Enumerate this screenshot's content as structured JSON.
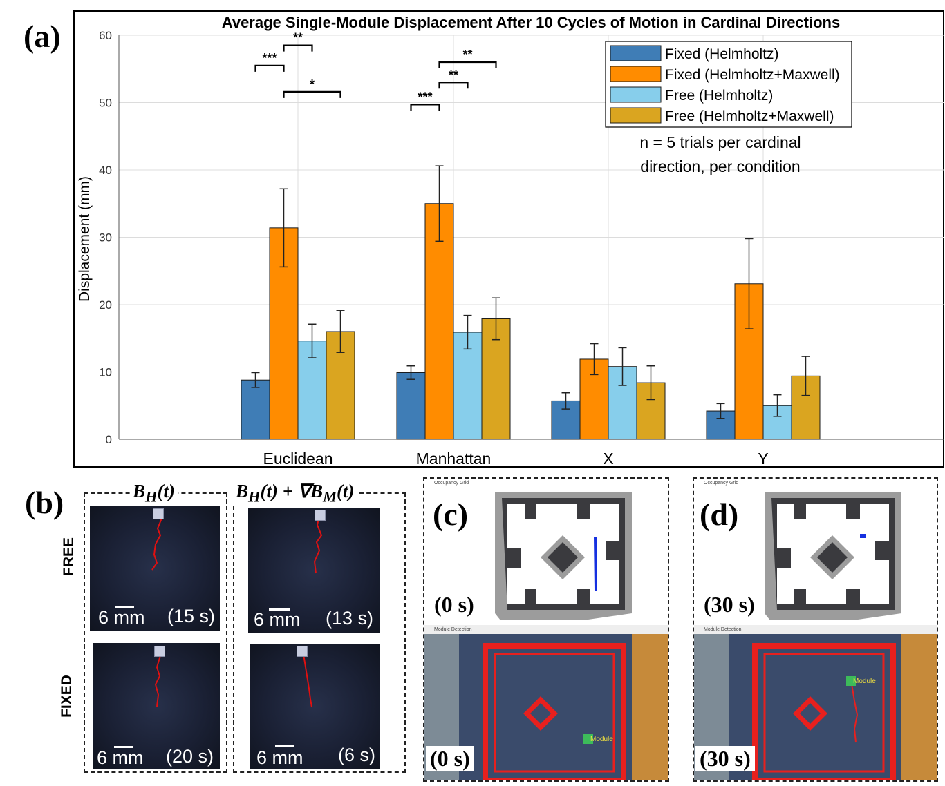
{
  "panels": {
    "a_label": "(a)",
    "b_label": "(b)",
    "c_label": "(c)",
    "d_label": "(d)"
  },
  "chart_data": {
    "type": "bar",
    "title": "Average Single-Module Displacement After 10 Cycles of Motion in Cardinal Directions",
    "xlabel": "",
    "ylabel": "Displacement (mm)",
    "ylim": [
      0,
      60
    ],
    "yticks": [
      0,
      10,
      20,
      30,
      40,
      50,
      60
    ],
    "grid": true,
    "legend_position": "top-right",
    "categories": [
      "Euclidean",
      "Manhattan",
      "X",
      "Y"
    ],
    "series": [
      {
        "name": "Fixed (Helmholtz)",
        "color": "#3f7db6",
        "values": [
          8.8,
          9.9,
          5.7,
          4.2
        ],
        "errors": [
          1.1,
          1.0,
          1.2,
          1.1
        ]
      },
      {
        "name": "Fixed (Helmholtz+Maxwell)",
        "color": "#ff8c00",
        "values": [
          31.4,
          35.0,
          11.9,
          23.1
        ],
        "errors": [
          5.8,
          5.6,
          2.3,
          6.7
        ]
      },
      {
        "name": "Free (Helmholtz)",
        "color": "#87ceeb",
        "values": [
          14.6,
          15.9,
          10.8,
          5.0
        ],
        "errors": [
          2.5,
          2.5,
          2.8,
          1.6
        ]
      },
      {
        "name": "Free (Helmholtz+Maxwell)",
        "color": "#daa520",
        "values": [
          16.0,
          17.9,
          8.4,
          9.4
        ],
        "errors": [
          3.1,
          3.1,
          2.5,
          2.9
        ]
      }
    ],
    "significance": [
      {
        "category": "Euclidean",
        "from": 0,
        "to": 1,
        "level": 55.5,
        "stars": "***"
      },
      {
        "category": "Euclidean",
        "from": 1,
        "to": 2,
        "level": 58.5,
        "stars": "**"
      },
      {
        "category": "Euclidean",
        "from": 1,
        "to": 3,
        "level": 51.6,
        "stars": "*"
      },
      {
        "category": "Manhattan",
        "from": 0,
        "to": 1,
        "level": 49.7,
        "stars": "***"
      },
      {
        "category": "Manhattan",
        "from": 1,
        "to": 2,
        "level": 53.0,
        "stars": "**"
      },
      {
        "category": "Manhattan",
        "from": 1,
        "to": 3,
        "level": 56.0,
        "stars": "**"
      }
    ],
    "annotation": [
      "n = 5 trials per cardinal",
      "direction, per condition"
    ]
  },
  "panel_b": {
    "col1_header": "B_H(t)",
    "col2_header": "B_H(t) + ∇B_M(t)",
    "row1_label": "FREE",
    "row2_label": "FIXED",
    "cells": [
      {
        "scale": "6 mm",
        "time": "(15 s)"
      },
      {
        "scale": "6 mm",
        "time": "(13 s)"
      },
      {
        "scale": "6 mm",
        "time": "(20 s)"
      },
      {
        "scale": "6 mm",
        "time": "(6 s)"
      }
    ]
  },
  "panel_c": {
    "window_title_top": "Occupancy Grid",
    "window_title_bottom": "Module Detection",
    "time_top": "(0 s)",
    "time_bottom": "(0 s)",
    "module_tag": "Module"
  },
  "panel_d": {
    "window_title_top": "Occupancy Grid",
    "window_title_bottom": "Module Detection",
    "time_top": "(30 s)",
    "time_bottom": "(30 s)",
    "module_tag": "Module"
  }
}
